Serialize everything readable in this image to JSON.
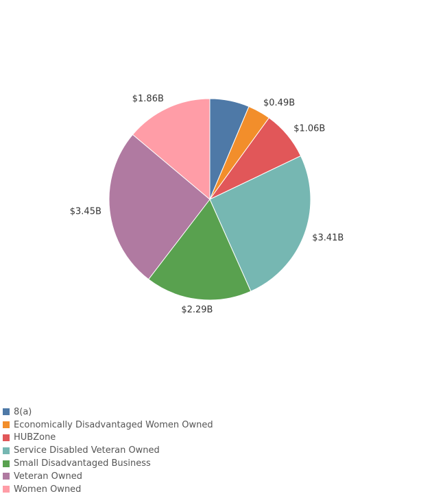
{
  "chart_data": {
    "type": "pie",
    "title": "",
    "unit": "$B",
    "categories": [
      "8(a)",
      "Economically Disadvantaged Women Owned",
      "HUBZone",
      "Service Disabled Veteran Owned",
      "Small Disadvantaged Business",
      "Veteran Owned",
      "Women Owned"
    ],
    "values": [
      0.85,
      0.49,
      1.06,
      3.41,
      2.29,
      3.45,
      1.86
    ],
    "labels": [
      "",
      "$0.49B",
      "$1.06B",
      "$3.41B",
      "$2.29B",
      "$3.45B",
      "$1.86B"
    ],
    "colors": [
      "#4e79a7",
      "#f28e2b",
      "#e15759",
      "#76b7b2",
      "#59a14f",
      "#b07aa1",
      "#ff9da7"
    ],
    "legend": "bottom-left",
    "start": "top",
    "direction": "clockwise"
  }
}
